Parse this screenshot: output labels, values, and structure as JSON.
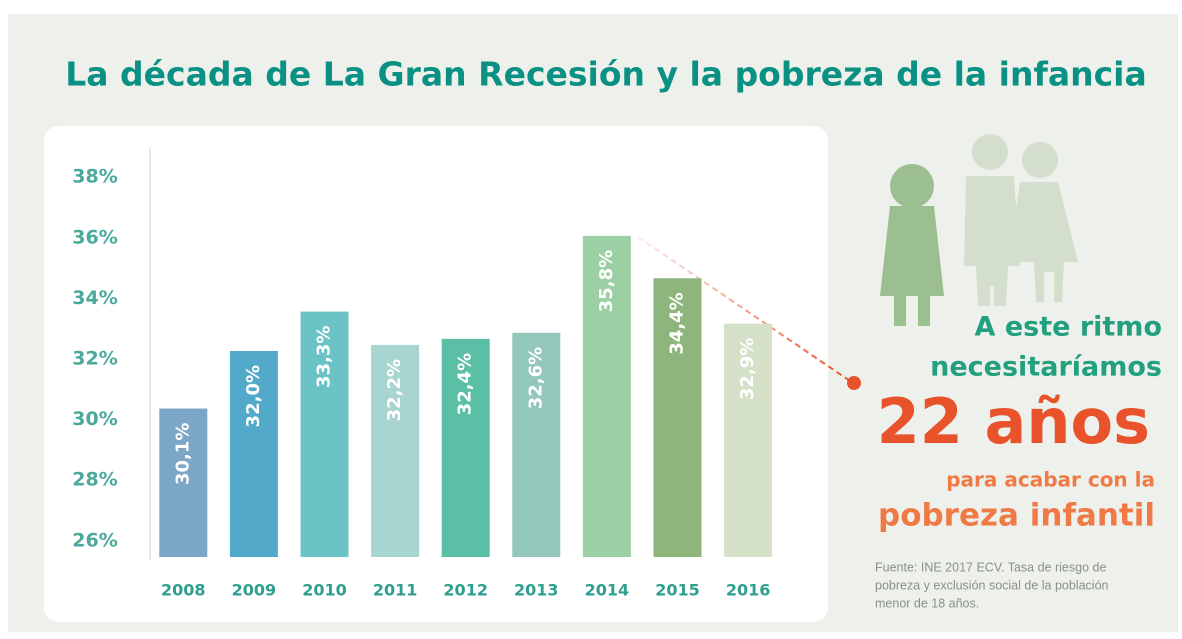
{
  "chart_data": {
    "type": "bar",
    "title": "La década de La Gran Recesión y la pobreza de la infancia",
    "categories": [
      "2008",
      "2009",
      "2010",
      "2011",
      "2012",
      "2013",
      "2014",
      "2015",
      "2016"
    ],
    "values": [
      30.1,
      32.0,
      33.3,
      32.2,
      32.4,
      32.6,
      35.8,
      34.4,
      32.9
    ],
    "value_labels": [
      "30,1%",
      "32,0%",
      "33,3%",
      "32,2%",
      "32,4%",
      "32,6%",
      "35,8%",
      "34,4%",
      "32,9%"
    ],
    "colors": [
      "#7ba6c6",
      "#52a9c9",
      "#6cc3c6",
      "#a9d5d0",
      "#5bbfa6",
      "#93c7bb",
      "#9ccfa3",
      "#8db57c",
      "#d4e0c8"
    ],
    "ylim": [
      25.2,
      38.7
    ],
    "yticks": [
      {
        "value": 26,
        "label": "26%"
      },
      {
        "value": 28,
        "label": "28%"
      },
      {
        "value": 30,
        "label": "30%"
      },
      {
        "value": 32,
        "label": "32%"
      },
      {
        "value": 34,
        "label": "34%"
      },
      {
        "value": 36,
        "label": "36%"
      },
      {
        "value": 38,
        "label": "38%"
      }
    ],
    "grid": false
  },
  "callout": {
    "line1": "A este ritmo",
    "line2": "necesitaríamos",
    "big": "22 años",
    "line3": "para acabar con la",
    "line4": "pobreza infantil"
  },
  "source": [
    "Fuente: INE 2017 ECV. Tasa de riesgo de",
    "pobreza y exclusión social de la población",
    "menor de 18 años."
  ]
}
